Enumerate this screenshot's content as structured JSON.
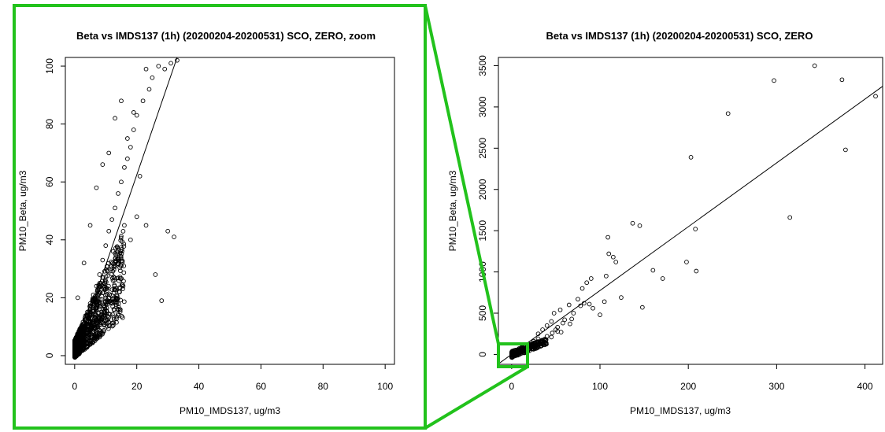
{
  "colors": {
    "highlight": "#22c21c",
    "points": "#000000",
    "background": "#ffffff"
  },
  "chart_data": [
    {
      "type": "scatter",
      "title": "Beta vs IMDS137 (1h) (20200204-20200531) SCO, ZERO, zoom",
      "xlabel": "PM10_IMDS137, ug/m3",
      "ylabel": "PM10_Beta, ug/m3",
      "xlim": [
        -3,
        103
      ],
      "ylim": [
        -3,
        103
      ],
      "xticks": [
        0,
        20,
        40,
        60,
        80,
        100
      ],
      "yticks": [
        0,
        20,
        40,
        60,
        80,
        100
      ],
      "grid": false,
      "fit_line": {
        "x": [
          0,
          33
        ],
        "y": [
          0,
          103
        ]
      },
      "point_style": "open-circle",
      "points_x": [
        1,
        2,
        3,
        4,
        5,
        6,
        7,
        8,
        9,
        10,
        11,
        12,
        13,
        14,
        15,
        16,
        17,
        18,
        19,
        20,
        22,
        24,
        25,
        27,
        29,
        31,
        33,
        1,
        3,
        5,
        7,
        9,
        11,
        13,
        15,
        17,
        19,
        21,
        23,
        0,
        1,
        2,
        3,
        4,
        5,
        6,
        7,
        8,
        9,
        10,
        12,
        14,
        16,
        18,
        20,
        23,
        26,
        28,
        30,
        32
      ],
      "points_y": [
        2,
        5,
        9,
        12,
        15,
        19,
        24,
        28,
        33,
        38,
        43,
        47,
        51,
        56,
        60,
        65,
        68,
        72,
        78,
        83,
        88,
        92,
        96,
        100,
        99,
        101,
        102,
        20,
        32,
        45,
        58,
        66,
        70,
        82,
        88,
        75,
        84,
        62,
        99,
        0,
        3,
        7,
        10,
        14,
        18,
        21,
        16,
        25,
        27,
        20,
        30,
        37,
        45,
        40,
        48,
        45,
        28,
        19,
        43,
        41
      ]
    },
    {
      "type": "scatter",
      "title": "Beta vs IMDS137 (1h) (20200204-20200531) SCO, ZERO",
      "xlabel": "PM10_IMDS137, ug/m3",
      "ylabel": "PM10_Beta, ug/m3",
      "xlim": [
        -15,
        420
      ],
      "ylim": [
        -120,
        3600
      ],
      "xticks": [
        0,
        100,
        200,
        300,
        400
      ],
      "yticks": [
        0,
        500,
        1000,
        1500,
        2000,
        2500,
        3000,
        3500
      ],
      "grid": false,
      "fit_line": {
        "x": [
          -15,
          420
        ],
        "y": [
          -115,
          3250
        ]
      },
      "point_style": "open-circle",
      "points_x": [
        343,
        297,
        374,
        412,
        245,
        203,
        378,
        315,
        208,
        137,
        145,
        109,
        110,
        115,
        118,
        198,
        160,
        209,
        171,
        107,
        85,
        90,
        80,
        75,
        65,
        55,
        48,
        45,
        40,
        35,
        30,
        124,
        100,
        105,
        92,
        88,
        82,
        78,
        70,
        68,
        60,
        58,
        52,
        50,
        46,
        40,
        148,
        66,
        56,
        52,
        45,
        30,
        25,
        20
      ],
      "points_y": [
        3500,
        3320,
        3330,
        3130,
        2920,
        2390,
        2480,
        1660,
        1520,
        1590,
        1560,
        1420,
        1220,
        1180,
        1120,
        1120,
        1020,
        1010,
        920,
        950,
        870,
        920,
        800,
        670,
        600,
        540,
        500,
        400,
        350,
        300,
        250,
        690,
        480,
        640,
        560,
        610,
        620,
        590,
        500,
        430,
        420,
        380,
        330,
        300,
        260,
        220,
        570,
        370,
        270,
        280,
        210,
        190,
        160,
        120
      ]
    }
  ]
}
